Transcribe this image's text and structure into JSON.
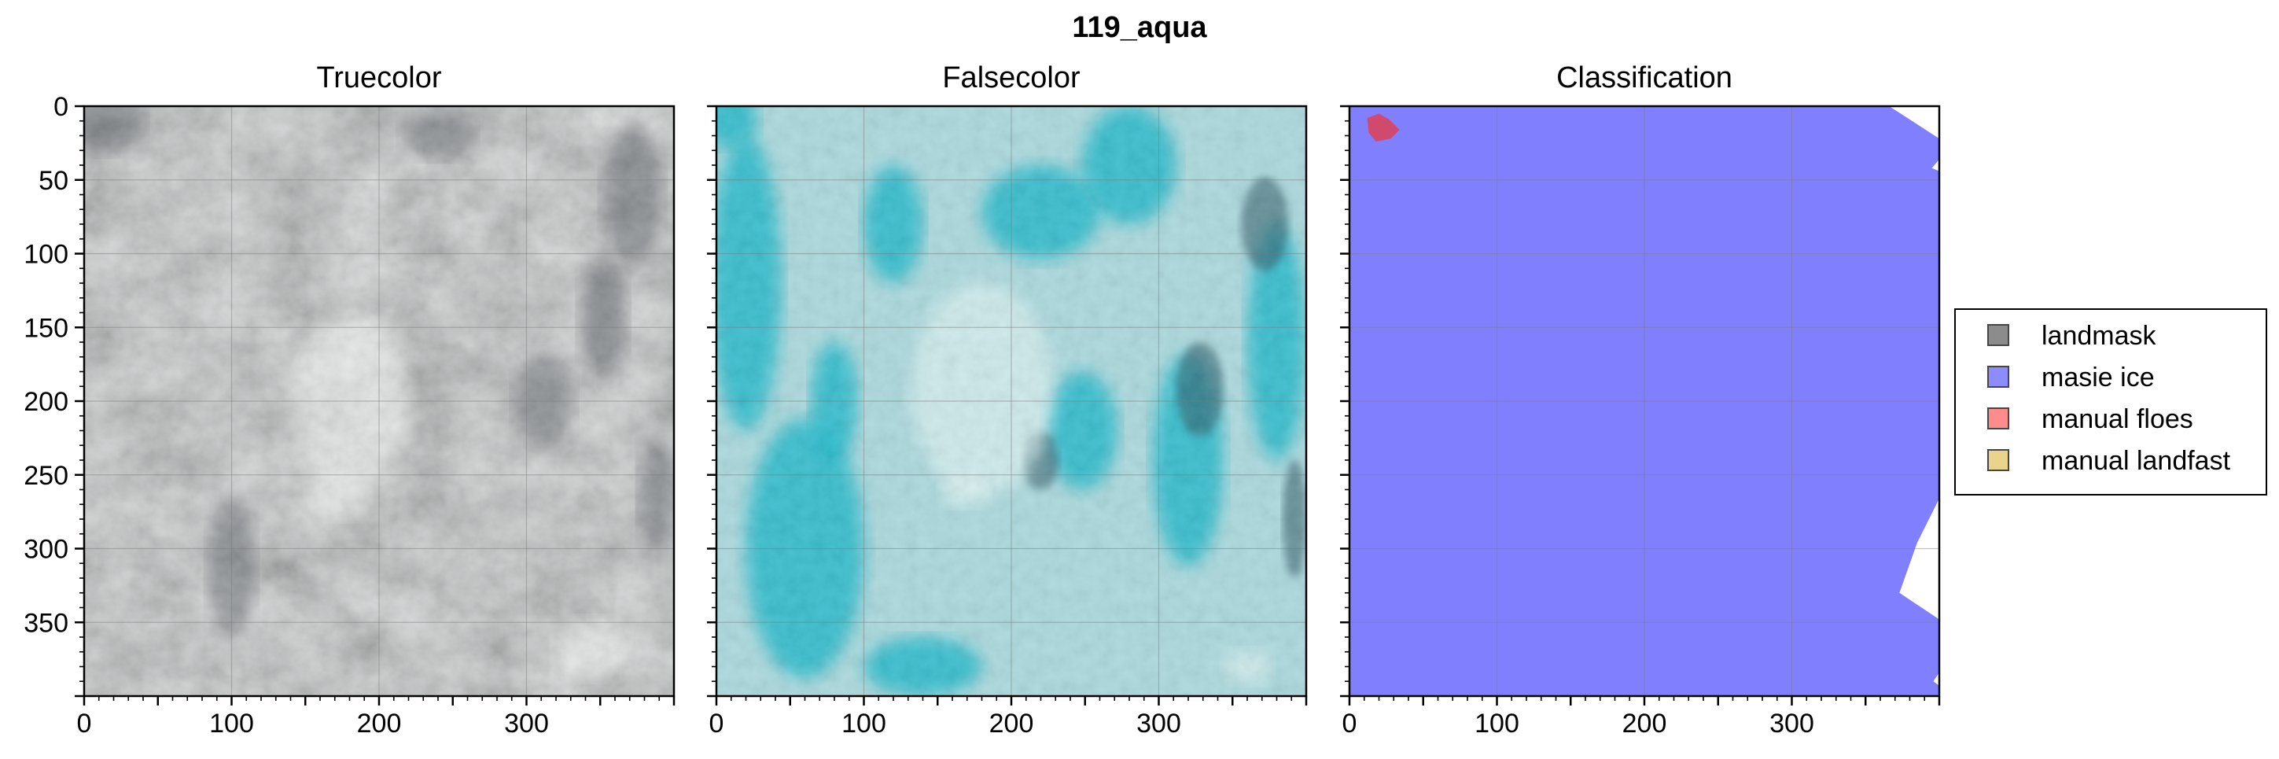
{
  "figure": {
    "suptitle": "119_aqua"
  },
  "colors": {
    "truecolor_base": "#c9cccd",
    "falsecolor_base": "#a9d8dc",
    "falsecolor_cyan": "#19b6c9",
    "masie_ice": "#8080ff",
    "manual_floes": "#d04a6e",
    "grid": "#7a7a7a",
    "legend_landmask": "#808080",
    "legend_masie": "#8080ff",
    "legend_floes": "#ff8080",
    "legend_landfast": "#e8d080"
  },
  "chart_data": [
    {
      "type": "image",
      "title": "Truecolor",
      "xlim": [
        0,
        400
      ],
      "ylim": [
        400,
        0
      ],
      "xticks": [
        0,
        100,
        200,
        300
      ],
      "yticks": [
        0,
        50,
        100,
        150,
        200,
        250,
        300,
        350
      ],
      "grid": true,
      "content": "satellite true-color image, grey-white cloud/ice texture"
    },
    {
      "type": "image",
      "title": "Falsecolor",
      "xlim": [
        0,
        400
      ],
      "ylim": [
        400,
        0
      ],
      "xticks": [
        0,
        100,
        200,
        300
      ],
      "yticks": [
        0,
        50,
        100,
        150,
        200,
        250,
        300,
        350
      ],
      "grid": true,
      "content": "false-color composite, pale cyan clouds with bright cyan ice bands"
    },
    {
      "type": "heatmap",
      "title": "Classification",
      "xlim": [
        0,
        400
      ],
      "ylim": [
        400,
        0
      ],
      "xticks": [
        0,
        100,
        200,
        300
      ],
      "yticks": [
        0,
        50,
        100,
        150,
        200,
        250,
        300,
        350
      ],
      "grid": true,
      "regions": [
        {
          "class": "masie ice",
          "description": "covers nearly the whole panel"
        },
        {
          "class": "manual floes",
          "description": "small patch near x≈20, y≈15"
        }
      ],
      "legend": {
        "placement": "right",
        "entries": [
          {
            "label": "landmask",
            "color": "#808080"
          },
          {
            "label": "masie ice",
            "color": "#8080ff"
          },
          {
            "label": "manual floes",
            "color": "#ff8080"
          },
          {
            "label": "manual landfast",
            "color": "#e8d080"
          }
        ]
      }
    }
  ]
}
